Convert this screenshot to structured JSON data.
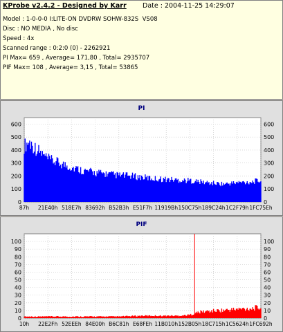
{
  "header": {
    "title": "KProbe v2.4.2 - Designed by Karr",
    "date": "Date : 2004-11-25 14:29:07",
    "lines": [
      "Model : 1-0-0-0 I:LITE-ON DVDRW SOHW-832S  VS08",
      "Disc : NO MEDIA , No disc",
      "Speed : 4x",
      "Scanned range : 0:2:0 (0) - 2262921",
      "PI Max= 659 , Average= 171,80 , Total= 2935707",
      "PIF Max= 108 , Average= 3,15 , Total= 53865"
    ]
  },
  "colors": {
    "pi_series": "#0000ff",
    "pif_series": "#ff0000",
    "pif_marker": "#ff0000",
    "plot_bg": "#ffffff",
    "grid": "#c0c0c0"
  },
  "chart_data": [
    {
      "type": "area",
      "title": "PI",
      "ylim": [
        0,
        650
      ],
      "yticks": [
        0,
        100,
        200,
        300,
        400,
        500,
        600
      ],
      "xtick_labels": [
        "87h",
        "21E40h",
        "518E7h",
        "83692h",
        "B52B3h",
        "E51F7h",
        "11919Bh",
        "150C75h",
        "189C24h",
        "1C2F79h",
        "1FC75Eh"
      ],
      "grid": true,
      "series": [
        {
          "x_fraction": [
            0,
            0.02,
            0.05,
            0.1,
            0.15,
            0.2,
            0.25,
            0.3,
            0.35,
            0.4,
            0.45,
            0.5,
            0.55,
            0.6,
            0.65,
            0.7,
            0.75,
            0.8,
            0.85,
            0.9,
            0.95,
            1.0
          ],
          "values": [
            420,
            450,
            400,
            320,
            290,
            260,
            235,
            220,
            210,
            200,
            195,
            185,
            175,
            170,
            165,
            160,
            150,
            140,
            135,
            145,
            150,
            160
          ]
        }
      ]
    },
    {
      "type": "area",
      "title": "PIF",
      "ylim": [
        0,
        110
      ],
      "yticks": [
        0,
        10,
        20,
        30,
        40,
        50,
        60,
        70,
        80,
        90,
        100
      ],
      "xtick_labels": [
        "10h",
        "22E2Fh",
        "52EEEh",
        "84E00h",
        "B6C81h",
        "E68FEh",
        "11B010h",
        "152B05h",
        "18C715h",
        "1C5624h",
        "1FC692h"
      ],
      "grid": true,
      "marker_x_fraction": 0.72,
      "series": [
        {
          "x_fraction": [
            0,
            0.1,
            0.2,
            0.3,
            0.4,
            0.5,
            0.6,
            0.65,
            0.7,
            0.72,
            0.75,
            0.8,
            0.85,
            0.9,
            0.95,
            1.0
          ],
          "values": [
            2,
            2,
            2,
            2,
            2,
            3,
            3,
            3,
            4,
            6,
            8,
            9,
            10,
            11,
            12,
            13
          ]
        }
      ]
    }
  ]
}
